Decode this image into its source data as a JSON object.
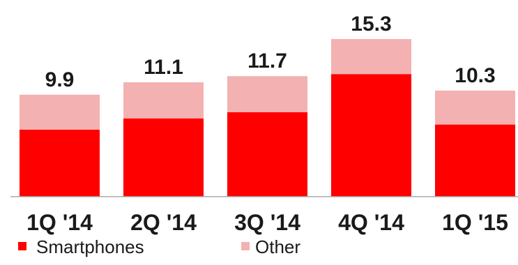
{
  "chart_data": {
    "type": "bar",
    "stacked": true,
    "categories": [
      "1Q '14",
      "2Q '14",
      "3Q '14",
      "4Q '14",
      "1Q '15"
    ],
    "series": [
      {
        "name": "Smartphones",
        "values": [
          6.5,
          7.6,
          8.2,
          11.9,
          7.0
        ],
        "color": "#ff0000"
      },
      {
        "name": "Other",
        "values": [
          3.4,
          3.5,
          3.5,
          3.4,
          3.3
        ],
        "color": "#f4b1b1"
      }
    ],
    "totals": [
      "9.9",
      "11.1",
      "11.7",
      "15.3",
      "10.3"
    ],
    "ylim": [
      0,
      15.3
    ],
    "grid": false,
    "legend_position": "bottom-left"
  }
}
